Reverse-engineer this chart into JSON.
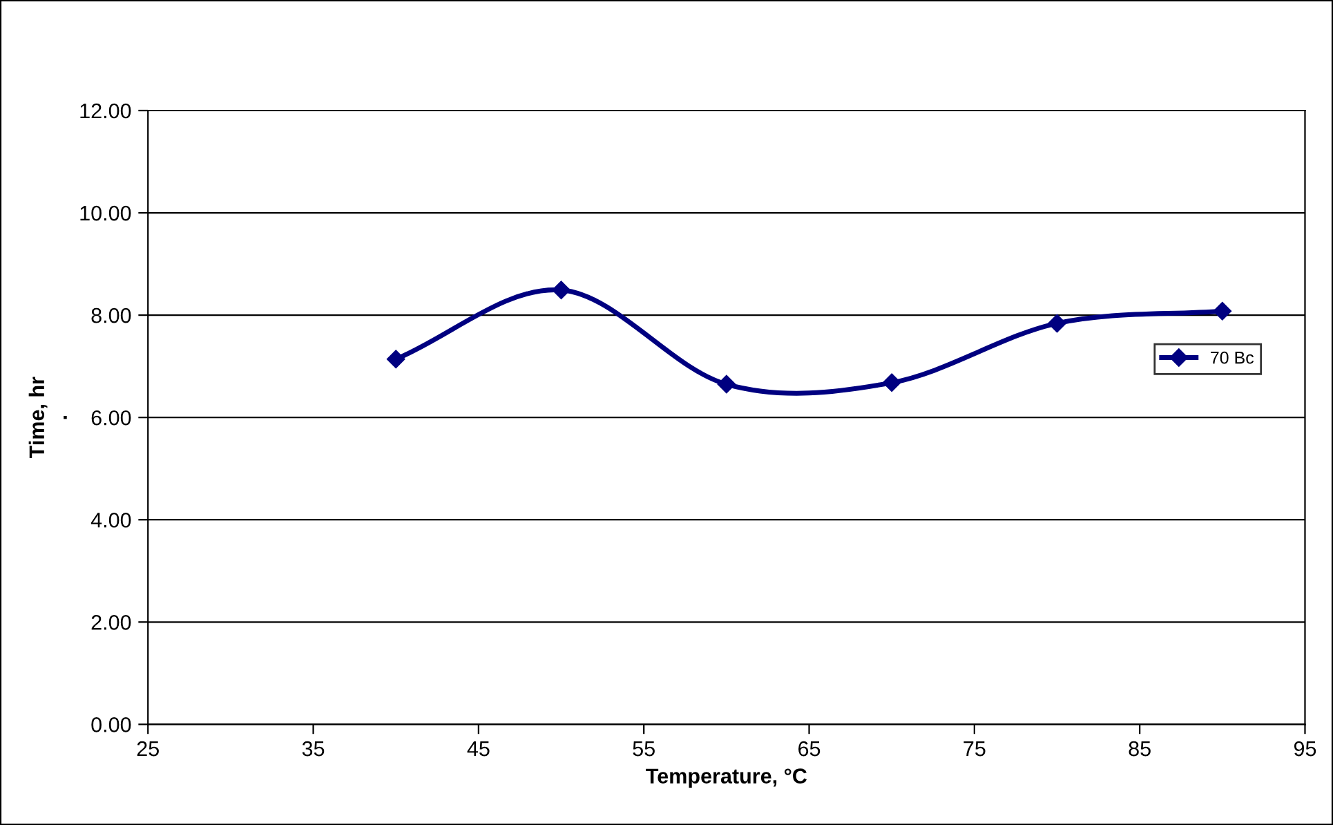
{
  "chart_data": {
    "type": "line",
    "xlabel": "Temperature, °C",
    "ylabel": "Time, hr\n.",
    "x": [
      40,
      50,
      60,
      70,
      80,
      90
    ],
    "series": [
      {
        "name": "70 Bc",
        "color": "#000080",
        "values": [
          7.14,
          8.49,
          6.65,
          6.68,
          7.84,
          8.08
        ]
      }
    ],
    "xlim": [
      25,
      95
    ],
    "xticks": [
      25,
      35,
      45,
      55,
      65,
      75,
      85,
      95
    ],
    "ylim": [
      0,
      12
    ],
    "yticks": [
      {
        "value": 0,
        "label": "0.00"
      },
      {
        "value": 2,
        "label": "2.00"
      },
      {
        "value": 4,
        "label": "4.00"
      },
      {
        "value": 6,
        "label": "6.00"
      },
      {
        "value": 8,
        "label": "8.00"
      },
      {
        "value": 10,
        "label": "10.00"
      },
      {
        "value": 12,
        "label": "12.00"
      }
    ],
    "grid": "y",
    "legend": "right",
    "marker": "diamond",
    "line_style": "solid"
  }
}
